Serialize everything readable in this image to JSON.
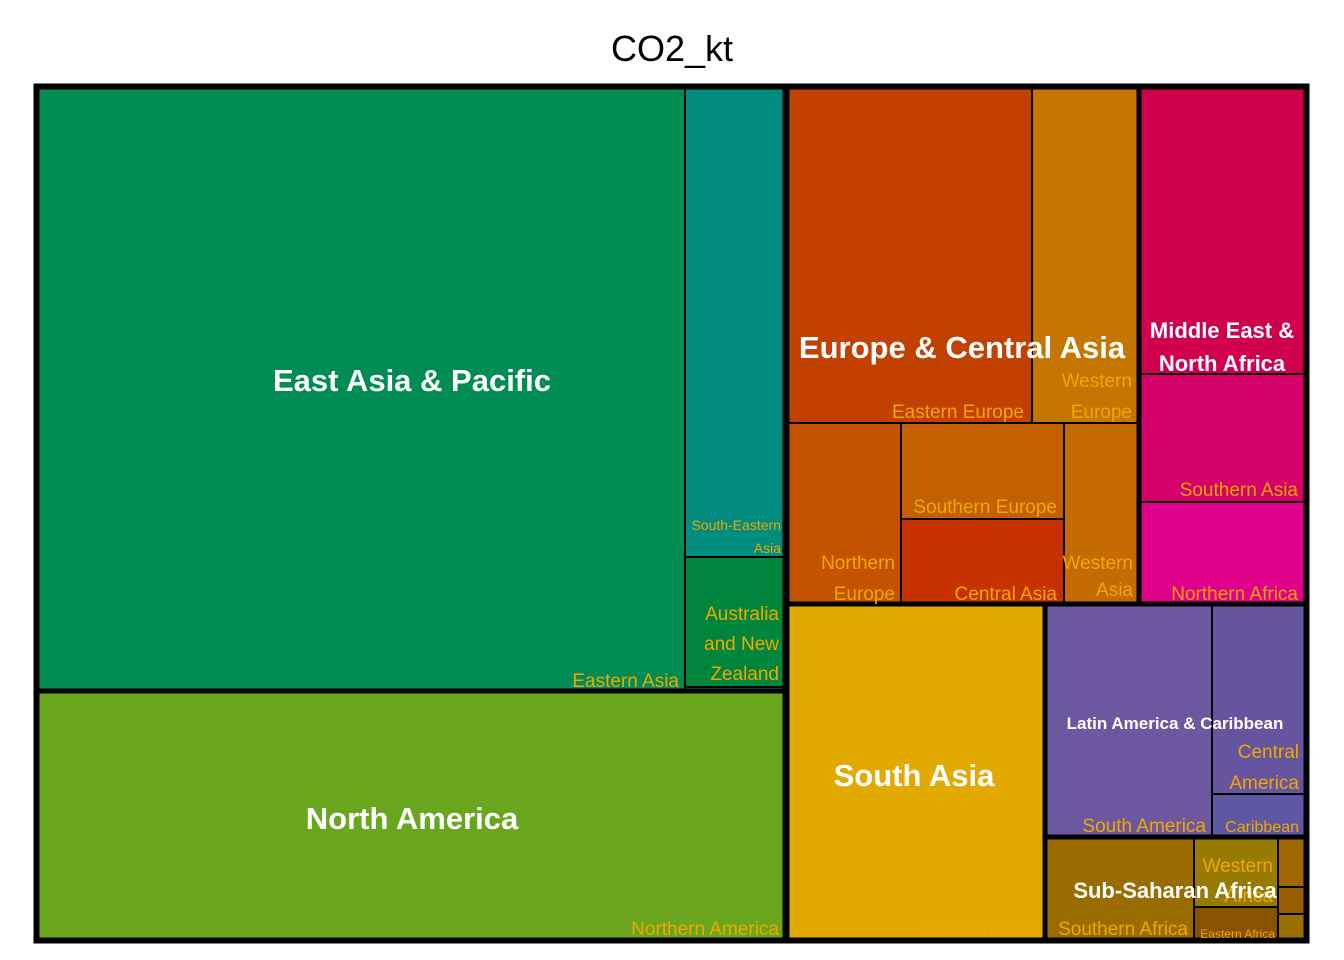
{
  "chart_data": {
    "type": "treemap",
    "title": "CO2_kt",
    "label_color_subregion": "#f0a800",
    "label_color_region": "#ffffff",
    "regions": [
      {
        "name": "East Asia & Pacific",
        "children": [
          {
            "name": "Eastern Asia",
            "color": "#008c52"
          },
          {
            "name": "South-Eastern Asia",
            "color": "#008c7e"
          },
          {
            "name": "Australia and New Zealand",
            "color": "#00853c"
          },
          {
            "name": "",
            "color": "#008a5a"
          }
        ]
      },
      {
        "name": "North America",
        "children": [
          {
            "name": "Northern America",
            "color": "#6aa51e"
          }
        ]
      },
      {
        "name": "Europe & Central Asia",
        "children": [
          {
            "name": "Eastern Europe",
            "color": "#c24000"
          },
          {
            "name": "Western Europe",
            "color": "#c57600"
          },
          {
            "name": "Northern Europe",
            "color": "#c45200"
          },
          {
            "name": "Southern Europe",
            "color": "#c46000"
          },
          {
            "name": "Central Asia",
            "color": "#c53200"
          },
          {
            "name": "Western Asia",
            "color": "#c56a00"
          }
        ]
      },
      {
        "name": "Middle East & North Africa",
        "children": [
          {
            "name": "",
            "color": "#d0004c"
          },
          {
            "name": "Southern Asia",
            "color": "#d5006a"
          },
          {
            "name": "Northern Africa",
            "color": "#e0008c"
          }
        ]
      },
      {
        "name": "South Asia",
        "children": [
          {
            "name": "Southern Asia",
            "color": "#e2aa00"
          }
        ]
      },
      {
        "name": "Latin America & Caribbean",
        "children": [
          {
            "name": "South America",
            "color": "#6b58a0"
          },
          {
            "name": "Central America",
            "color": "#6554a0"
          },
          {
            "name": "Caribbean",
            "color": "#5f56a4"
          }
        ]
      },
      {
        "name": "Sub-Saharan Africa",
        "children": [
          {
            "name": "Southern Africa",
            "color": "#9a6c00"
          },
          {
            "name": "Western Africa",
            "color": "#977a00"
          },
          {
            "name": "Eastern Africa",
            "color": "#8a5200"
          },
          {
            "name": "",
            "color": "#a06800"
          },
          {
            "name": "",
            "color": "#9a5c00"
          },
          {
            "name": "",
            "color": "#9a7000"
          }
        ]
      }
    ]
  }
}
